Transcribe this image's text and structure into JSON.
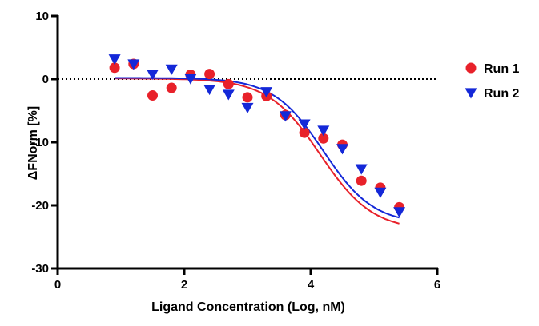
{
  "chart_data": {
    "type": "scatter",
    "title": "",
    "xlabel": "Ligand Concentration (Log, nM)",
    "ylabel": "ΔFNorm [%]",
    "xlim": [
      0,
      6
    ],
    "ylim": [
      -30,
      10
    ],
    "x_ticks": [
      0,
      2,
      4,
      6
    ],
    "y_ticks": [
      10,
      0,
      -10,
      -20,
      -30
    ],
    "zero_line": true,
    "legend_position": "right",
    "series": [
      {
        "name": "Run 1",
        "color": "#e8212a",
        "marker": "circle",
        "x": [
          0.9,
          1.2,
          1.5,
          1.8,
          2.1,
          2.4,
          2.7,
          3.0,
          3.3,
          3.6,
          3.9,
          4.2,
          4.5,
          4.8,
          5.1,
          5.4
        ],
        "y": [
          1.8,
          2.4,
          -2.6,
          -1.4,
          0.7,
          0.8,
          -0.8,
          -2.9,
          -2.7,
          -5.7,
          -8.5,
          -9.4,
          -10.4,
          -16.1,
          -17.2,
          -20.3
        ],
        "fit": {
          "top": 0.1,
          "bottom": -24,
          "logEC50": 4.15,
          "hill": 1.05,
          "x_range": [
            0.9,
            5.4
          ]
        }
      },
      {
        "name": "Run 2",
        "color": "#1428d8",
        "marker": "triangle-down",
        "x": [
          0.9,
          1.2,
          1.5,
          1.8,
          2.1,
          2.4,
          2.7,
          3.0,
          3.3,
          3.6,
          3.9,
          4.2,
          4.5,
          4.8,
          5.1,
          5.4
        ],
        "y": [
          3.2,
          2.4,
          0.8,
          1.6,
          0.1,
          -1.6,
          -2.4,
          -4.5,
          -2.0,
          -5.8,
          -7.1,
          -8.1,
          -11.0,
          -14.2,
          -17.9,
          -21.0
        ],
        "fit": {
          "top": 0.2,
          "bottom": -23,
          "logEC50": 4.2,
          "hill": 1.1,
          "x_range": [
            0.9,
            5.4
          ]
        }
      }
    ]
  }
}
